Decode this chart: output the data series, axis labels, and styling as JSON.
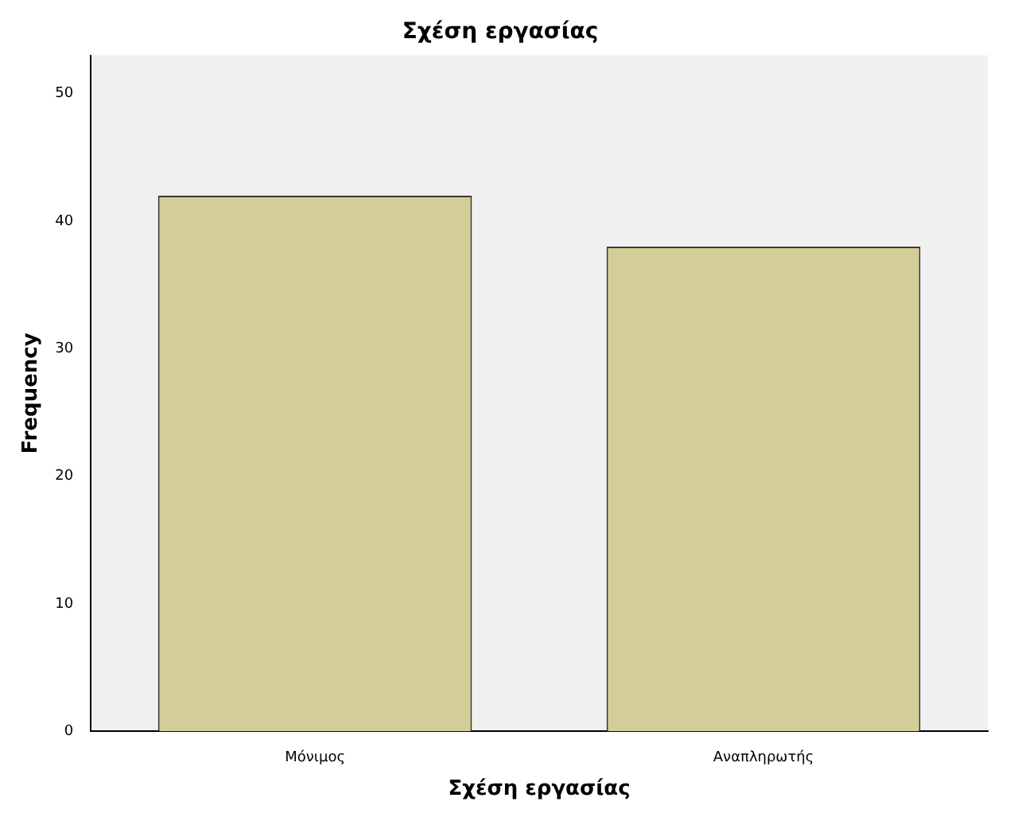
{
  "chart_data": {
    "type": "bar",
    "title": "Σχέση εργασίας",
    "xlabel": "Σχέση εργασίας",
    "ylabel": "Frequency",
    "categories": [
      "Μόνιμος",
      "Αναπληρωτής"
    ],
    "values": [
      42,
      38
    ],
    "color": "#d3ce98",
    "ylim": [
      0,
      53
    ],
    "yticks": [
      0,
      10,
      20,
      30,
      40,
      50
    ],
    "grid": false,
    "legend": false
  }
}
